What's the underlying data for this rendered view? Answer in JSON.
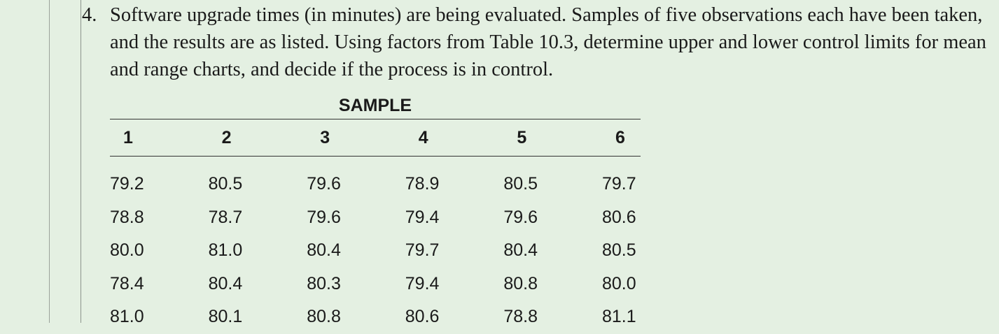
{
  "problem": {
    "number": "4.",
    "text": "Software upgrade times (in minutes) are being evaluated. Samples of five observations each have been taken, and the results are as listed. Using factors from Table 10.3, determine upper and lower control limits for mean and range charts, and decide if the process is in control."
  },
  "table": {
    "title": "SAMPLE",
    "headers": [
      "1",
      "2",
      "3",
      "4",
      "5",
      "6"
    ],
    "rows": [
      [
        "79.2",
        "80.5",
        "79.6",
        "78.9",
        "80.5",
        "79.7"
      ],
      [
        "78.8",
        "78.7",
        "79.6",
        "79.4",
        "79.6",
        "80.6"
      ],
      [
        "80.0",
        "81.0",
        "80.4",
        "79.7",
        "80.4",
        "80.5"
      ],
      [
        "78.4",
        "80.4",
        "80.3",
        "79.4",
        "80.8",
        "80.0"
      ],
      [
        "81.0",
        "80.1",
        "80.8",
        "80.6",
        "78.8",
        "81.1"
      ]
    ]
  }
}
